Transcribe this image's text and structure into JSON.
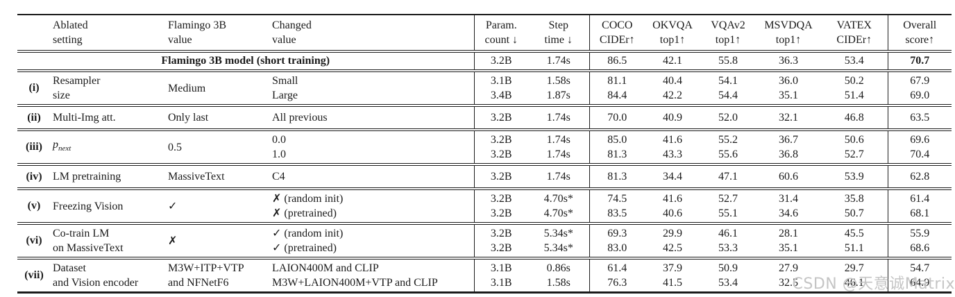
{
  "colors": {
    "text": "#1a1a1a",
    "rule": "#1a1a1a",
    "watermark": "#c5c5c5",
    "background": "#ffffff"
  },
  "watermark": "CSDN @天意诚Matrix",
  "table": {
    "headers": {
      "ablated": [
        "Ablated",
        "setting"
      ],
      "flamingo": [
        "Flamingo 3B",
        "value"
      ],
      "changed": [
        "Changed",
        "value"
      ],
      "param": [
        "Param.",
        "count ↓"
      ],
      "step": [
        "Step",
        "time ↓"
      ],
      "coco": [
        "COCO",
        "CIDEr↑"
      ],
      "okvqa": [
        "OKVQA",
        "top1↑"
      ],
      "vqav2": [
        "VQAv2",
        "top1↑"
      ],
      "msvdqa": [
        "MSVDQA",
        "top1↑"
      ],
      "vatex": [
        "VATEX",
        "CIDEr↑"
      ],
      "overall": [
        "Overall",
        "score↑"
      ]
    },
    "baseline": {
      "label": "Flamingo 3B model (short training)",
      "param": "3.2B",
      "step": "1.74s",
      "coco": "86.5",
      "okvqa": "42.1",
      "vqav2": "55.8",
      "msvdqa": "36.3",
      "vatex": "53.4",
      "overall": "70.7"
    },
    "rows": [
      {
        "id": "(i)",
        "ablated": [
          "Resampler",
          "size"
        ],
        "flamingo": [
          "Medium"
        ],
        "changed": [
          "Small",
          "Large"
        ],
        "param": [
          "3.1B",
          "3.4B"
        ],
        "step": [
          "1.58s",
          "1.87s"
        ],
        "coco": [
          "81.1",
          "84.4"
        ],
        "okvqa": [
          "40.4",
          "42.2"
        ],
        "vqav2": [
          "54.1",
          "54.4"
        ],
        "msvdqa": [
          "36.0",
          "35.1"
        ],
        "vatex": [
          "50.2",
          "51.4"
        ],
        "overall": [
          "67.9",
          "69.0"
        ]
      },
      {
        "id": "(ii)",
        "ablated": [
          "Multi-Img att."
        ],
        "flamingo": [
          "Only last"
        ],
        "changed": [
          "All previous"
        ],
        "param": [
          "3.2B"
        ],
        "step": [
          "1.74s"
        ],
        "coco": [
          "70.0"
        ],
        "okvqa": [
          "40.9"
        ],
        "vqav2": [
          "52.0"
        ],
        "msvdqa": [
          "32.1"
        ],
        "vatex": [
          "46.8"
        ],
        "overall": [
          "63.5"
        ]
      },
      {
        "id": "(iii)",
        "math": {
          "base": "p",
          "sub": "next"
        },
        "ablated": [],
        "flamingo": [
          "0.5"
        ],
        "changed": [
          "0.0",
          "1.0"
        ],
        "param": [
          "3.2B",
          "3.2B"
        ],
        "step": [
          "1.74s",
          "1.74s"
        ],
        "coco": [
          "85.0",
          "81.3"
        ],
        "okvqa": [
          "41.6",
          "43.3"
        ],
        "vqav2": [
          "55.2",
          "55.6"
        ],
        "msvdqa": [
          "36.7",
          "36.8"
        ],
        "vatex": [
          "50.6",
          "52.7"
        ],
        "overall": [
          "69.6",
          "70.4"
        ]
      },
      {
        "id": "(iv)",
        "ablated": [
          "LM pretraining"
        ],
        "flamingo": [
          "MassiveText"
        ],
        "changed": [
          "C4"
        ],
        "param": [
          "3.2B"
        ],
        "step": [
          "1.74s"
        ],
        "coco": [
          "81.3"
        ],
        "okvqa": [
          "34.4"
        ],
        "vqav2": [
          "47.1"
        ],
        "msvdqa": [
          "60.6"
        ],
        "vatex": [
          "53.9"
        ],
        "overall": [
          "62.8"
        ]
      },
      {
        "id": "(v)",
        "ablated": [
          "Freezing Vision"
        ],
        "flamingo": [
          "✓"
        ],
        "changed": [
          "✗ (random init)",
          "✗ (pretrained)"
        ],
        "param": [
          "3.2B",
          "3.2B"
        ],
        "step": [
          "4.70s*",
          "4.70s*"
        ],
        "coco": [
          "74.5",
          "83.5"
        ],
        "okvqa": [
          "41.6",
          "40.6"
        ],
        "vqav2": [
          "52.7",
          "55.1"
        ],
        "msvdqa": [
          "31.4",
          "34.6"
        ],
        "vatex": [
          "35.8",
          "50.7"
        ],
        "overall": [
          "61.4",
          "68.1"
        ]
      },
      {
        "id": "(vi)",
        "ablated": [
          "Co-train LM",
          "on MassiveText"
        ],
        "flamingo": [
          "✗"
        ],
        "changed": [
          "✓ (random init)",
          "✓ (pretrained)"
        ],
        "param": [
          "3.2B",
          "3.2B"
        ],
        "step": [
          "5.34s*",
          "5.34s*"
        ],
        "coco": [
          "69.3",
          "83.0"
        ],
        "okvqa": [
          "29.9",
          "42.5"
        ],
        "vqav2": [
          "46.1",
          "53.3"
        ],
        "msvdqa": [
          "28.1",
          "35.1"
        ],
        "vatex": [
          "45.5",
          "51.1"
        ],
        "overall": [
          "55.9",
          "68.6"
        ]
      },
      {
        "id": "(vii)",
        "ablated": [
          "Dataset",
          "and Vision encoder"
        ],
        "flamingo": [
          "M3W+ITP+VTP",
          "and NFNetF6"
        ],
        "changed": [
          "LAION400M and CLIP",
          "M3W+LAION400M+VTP and CLIP"
        ],
        "param": [
          "3.1B",
          "3.1B"
        ],
        "step": [
          "0.86s",
          "1.58s"
        ],
        "coco": [
          "61.4",
          "76.3"
        ],
        "okvqa": [
          "37.9",
          "41.5"
        ],
        "vqav2": [
          "50.9",
          "53.4"
        ],
        "msvdqa": [
          "27.9",
          "32.5"
        ],
        "vatex": [
          "29.7",
          "46.1"
        ],
        "overall": [
          "54.7",
          "64.9"
        ]
      }
    ]
  }
}
